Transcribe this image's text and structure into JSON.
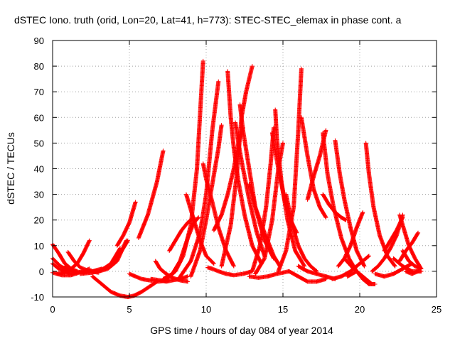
{
  "chart_data": {
    "type": "scatter",
    "title": "dSTEC Iono. truth (orid, Lon=20, Lat=41, h=773): STEC-STEC_elemax in phase cont. a",
    "xlabel": "GPS time / hours of day 084 of year 2014",
    "ylabel": "dSTEC  / TECUs",
    "xlim": [
      0,
      25
    ],
    "ylim": [
      -10,
      90
    ],
    "xticks": [
      0,
      5,
      10,
      15,
      20,
      25
    ],
    "yticks": [
      -10,
      0,
      10,
      20,
      30,
      40,
      50,
      60,
      70,
      80,
      90
    ],
    "grid": true,
    "marker": "+",
    "color": "#ff0000",
    "arcs": [
      {
        "x": [
          0.0,
          0.4,
          0.8,
          1.2,
          1.6
        ],
        "y": [
          10.5,
          7,
          3,
          1,
          0
        ]
      },
      {
        "x": [
          0.0,
          0.5,
          1.0,
          1.5
        ],
        "y": [
          5,
          2,
          0.5,
          -0.5
        ]
      },
      {
        "x": [
          0.0,
          0.4,
          0.8,
          1.2
        ],
        "y": [
          3,
          1,
          0,
          -1
        ]
      },
      {
        "x": [
          0.0,
          0.6,
          1.2,
          2.0,
          2.4
        ],
        "y": [
          -0.5,
          -1.5,
          -1.5,
          0,
          1
        ]
      },
      {
        "x": [
          0.3,
          1.0,
          1.6,
          2.0,
          2.4
        ],
        "y": [
          -1,
          0,
          3,
          7,
          12
        ]
      },
      {
        "x": [
          0.8,
          1.4,
          2.0,
          2.6,
          3.2
        ],
        "y": [
          2,
          0,
          -0.5,
          0,
          1
        ]
      },
      {
        "x": [
          1.0,
          1.4,
          1.8,
          2.4,
          3.0
        ],
        "y": [
          7.5,
          4,
          1.5,
          0,
          -0.5
        ]
      },
      {
        "x": [
          1.8,
          2.6,
          3.2,
          3.8,
          4.4
        ],
        "y": [
          -1,
          -0.5,
          0.5,
          3,
          9
        ]
      },
      {
        "x": [
          2.4,
          3.0,
          3.6,
          4.2,
          4.8
        ],
        "y": [
          0,
          0,
          1,
          4,
          12
        ]
      },
      {
        "x": [
          3.0,
          3.6,
          4.0,
          4.4,
          4.9
        ],
        "y": [
          0,
          2,
          4,
          7,
          12
        ]
      },
      {
        "x": [
          2.6,
          3.2,
          3.8,
          4.4,
          4.9
        ],
        "y": [
          -2,
          -5,
          -8,
          -9.5,
          -10
        ]
      },
      {
        "x": [
          4.9,
          5.3,
          5.8,
          6.3,
          6.8
        ],
        "y": [
          -10,
          -9.5,
          -8,
          -6,
          -4
        ]
      },
      {
        "x": [
          4.2,
          4.6,
          5.0,
          5.4
        ],
        "y": [
          10,
          14,
          19,
          27
        ]
      },
      {
        "x": [
          5.0,
          5.4,
          5.8,
          6.3,
          6.9,
          7.6
        ],
        "y": [
          -1,
          -2,
          -3,
          -3.5,
          -4,
          -3.5
        ]
      },
      {
        "x": [
          5.6,
          6.2,
          6.8,
          7.2
        ],
        "y": [
          13,
          22,
          35,
          47
        ]
      },
      {
        "x": [
          6.7,
          7.0,
          7.4,
          7.8,
          8.3,
          8.8
        ],
        "y": [
          4,
          1,
          -1,
          -2.5,
          -3.5,
          -4
        ]
      },
      {
        "x": [
          6.4,
          7.0,
          7.4,
          7.8,
          8.3,
          8.8
        ],
        "y": [
          -3,
          -3.5,
          -4,
          -3.5,
          -3,
          -2
        ]
      },
      {
        "x": [
          7.2,
          7.8,
          8.3,
          8.8,
          9.2,
          9.5
        ],
        "y": [
          -3,
          -1,
          4,
          13,
          19,
          21
        ]
      },
      {
        "x": [
          7.6,
          8.0,
          8.4,
          8.8,
          9.2
        ],
        "y": [
          8,
          12,
          16,
          19,
          21
        ]
      },
      {
        "x": [
          7.4,
          8.0,
          8.5,
          9.0,
          9.4,
          9.8
        ],
        "y": [
          -3,
          0,
          6,
          18,
          40,
          82
        ]
      },
      {
        "x": [
          8.7,
          8.9,
          9.2,
          9.6,
          10.0,
          10.5
        ],
        "y": [
          30,
          26,
          20,
          12,
          6,
          3
        ]
      },
      {
        "x": [
          8.2,
          9.0,
          9.6,
          10.0,
          10.4,
          10.8
        ],
        "y": [
          -3,
          4,
          15,
          30,
          55,
          74
        ]
      },
      {
        "x": [
          9.0,
          9.6,
          10.0,
          10.4,
          10.8,
          11.0
        ],
        "y": [
          -2,
          8,
          20,
          34,
          48,
          57
        ]
      },
      {
        "x": [
          9.8,
          10.0,
          10.4,
          10.8,
          11.3,
          11.8
        ],
        "y": [
          42,
          36,
          27,
          17,
          8,
          2
        ]
      },
      {
        "x": [
          10.1,
          10.4,
          10.8,
          11.3,
          11.8,
          12.4,
          13.0
        ],
        "y": [
          1.5,
          1,
          0,
          -1,
          -1.5,
          -1,
          0
        ]
      },
      {
        "x": [
          10.5,
          11.0,
          11.4,
          11.8,
          12.1,
          12.4
        ],
        "y": [
          16,
          22,
          30,
          40,
          50,
          56
        ]
      },
      {
        "x": [
          11.4,
          11.6,
          11.8,
          12.1,
          12.5,
          13.0,
          13.6
        ],
        "y": [
          78,
          60,
          48,
          35,
          22,
          10,
          3
        ]
      },
      {
        "x": [
          11.9,
          12.1,
          12.4,
          12.8,
          13.3,
          13.8
        ],
        "y": [
          58,
          50,
          40,
          28,
          15,
          6
        ]
      },
      {
        "x": [
          11.0,
          11.6,
          12.0,
          12.3,
          12.6,
          13.0
        ],
        "y": [
          2,
          18,
          38,
          60,
          70,
          80
        ]
      },
      {
        "x": [
          12.2,
          12.4,
          12.8,
          13.2,
          13.8,
          14.4
        ],
        "y": [
          65,
          55,
          40,
          25,
          12,
          5
        ]
      },
      {
        "x": [
          12.8,
          13.2,
          13.8,
          14.4,
          14.8
        ],
        "y": [
          34,
          25,
          15,
          6,
          2
        ]
      },
      {
        "x": [
          12.8,
          13.4,
          14.0,
          14.6,
          15.4
        ],
        "y": [
          -2,
          -2.5,
          -2,
          -1,
          0
        ]
      },
      {
        "x": [
          13.0,
          13.5,
          13.9,
          14.2,
          14.4
        ],
        "y": [
          0,
          10,
          25,
          42,
          56
        ]
      },
      {
        "x": [
          13.2,
          13.8,
          14.3,
          14.7,
          15.0
        ],
        "y": [
          -1,
          5,
          20,
          40,
          50
        ]
      },
      {
        "x": [
          14.5,
          14.6,
          14.9,
          15.3,
          15.8,
          16.4
        ],
        "y": [
          63,
          52,
          35,
          20,
          8,
          2
        ]
      },
      {
        "x": [
          14.3,
          14.7,
          15.1,
          15.5,
          15.9
        ],
        "y": [
          54,
          40,
          28,
          20,
          15
        ]
      },
      {
        "x": [
          14.7,
          15.2,
          15.7,
          16.0,
          16.2
        ],
        "y": [
          0,
          8,
          25,
          55,
          79
        ]
      },
      {
        "x": [
          15.2,
          15.6,
          16.0,
          16.4,
          16.8,
          17.2
        ],
        "y": [
          30,
          18,
          10,
          5,
          2,
          0
        ]
      },
      {
        "x": [
          16.2,
          16.6,
          17.0,
          17.4,
          17.8
        ],
        "y": [
          60,
          45,
          32,
          25,
          21
        ]
      },
      {
        "x": [
          16.6,
          17.0,
          17.4,
          17.8
        ],
        "y": [
          28,
          37,
          45,
          55
        ]
      },
      {
        "x": [
          15.4,
          16.0,
          16.6,
          17.2,
          17.8
        ],
        "y": [
          0,
          -2,
          -4,
          -4,
          -3
        ]
      },
      {
        "x": [
          16.0,
          16.6,
          17.2,
          17.8,
          18.4
        ],
        "y": [
          2,
          0,
          -1,
          -2,
          -3
        ]
      },
      {
        "x": [
          17.6,
          17.9,
          18.3,
          18.8,
          19.3,
          19.8
        ],
        "y": [
          54,
          38,
          25,
          13,
          5,
          0
        ]
      },
      {
        "x": [
          17.6,
          18.0,
          18.4,
          18.8,
          19.1
        ],
        "y": [
          30,
          26,
          23,
          21,
          20
        ]
      },
      {
        "x": [
          18.4,
          18.7,
          19.0,
          19.4,
          19.8,
          20.3
        ],
        "y": [
          51,
          38,
          28,
          17,
          8,
          2
        ]
      },
      {
        "x": [
          18.2,
          18.8,
          19.4,
          20.0,
          20.6
        ],
        "y": [
          -3,
          -2,
          0,
          3,
          6
        ]
      },
      {
        "x": [
          18.6,
          19.0,
          19.4,
          19.8,
          20.2
        ],
        "y": [
          2,
          5,
          10,
          17,
          23
        ]
      },
      {
        "x": [
          19.0,
          19.6,
          20.2,
          20.8
        ],
        "y": [
          5,
          1,
          -2,
          -5
        ]
      },
      {
        "x": [
          19.2,
          19.8,
          20.2,
          20.6,
          21.0
        ],
        "y": [
          -2,
          0,
          -3,
          -5,
          -5
        ]
      },
      {
        "x": [
          20.4,
          20.6,
          20.9,
          21.3,
          21.8,
          22.3
        ],
        "y": [
          50,
          38,
          25,
          14,
          6,
          2
        ]
      },
      {
        "x": [
          20.8,
          21.2,
          21.6,
          22.0,
          22.4,
          22.8
        ],
        "y": [
          0,
          2,
          5,
          9,
          14,
          22
        ]
      },
      {
        "x": [
          21.0,
          21.6,
          22.2,
          22.8,
          23.4
        ],
        "y": [
          -1,
          -2,
          -1,
          1,
          3
        ]
      },
      {
        "x": [
          21.6,
          22.0,
          22.4,
          22.8
        ],
        "y": [
          8,
          12,
          16,
          21
        ]
      },
      {
        "x": [
          22.6,
          22.9,
          23.2,
          23.6,
          24.0
        ],
        "y": [
          22,
          16,
          10,
          5,
          1
        ]
      },
      {
        "x": [
          22.2,
          22.8,
          23.4,
          24.0
        ],
        "y": [
          5,
          2,
          0,
          0
        ]
      },
      {
        "x": [
          22.8,
          23.2,
          23.6,
          24.0
        ],
        "y": [
          8,
          4,
          2,
          1
        ]
      },
      {
        "x": [
          22.6,
          23.0,
          23.4,
          23.8
        ],
        "y": [
          4,
          8,
          11,
          15
        ]
      },
      {
        "x": [
          23.0,
          23.4,
          23.8,
          24.0
        ],
        "y": [
          0,
          -1,
          0,
          0
        ]
      }
    ]
  }
}
